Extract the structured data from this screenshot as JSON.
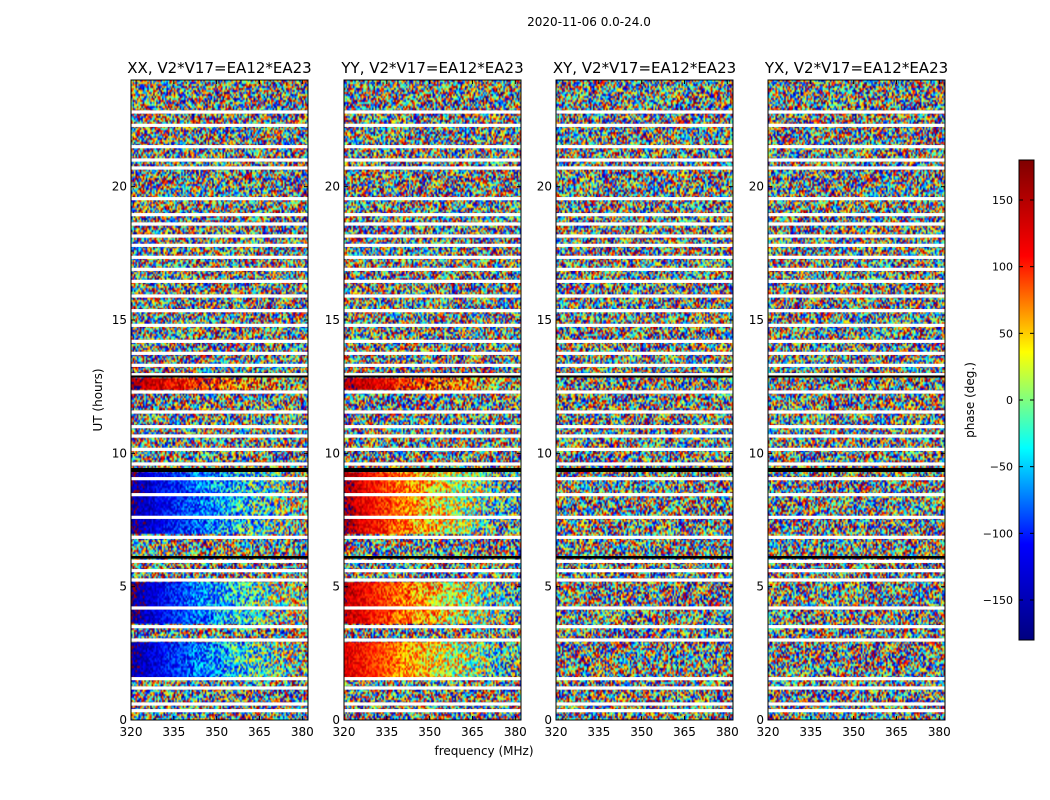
{
  "figure_title": "2020-11-06 0.0-24.0",
  "chart_data": [
    {
      "type": "heatmap",
      "title": "XX, V2*V17=EA12*EA23",
      "polarization": "XX",
      "xlim": [
        320,
        382
      ],
      "ylim": [
        0,
        24
      ],
      "xticks": [
        320,
        335,
        350,
        365,
        380
      ],
      "yticks": [
        0,
        5,
        10,
        15,
        20
      ],
      "ylabel": "UT (hours)",
      "coherent_segments": [
        {
          "t_start": 1.6,
          "t_end": 2.9,
          "phase_at_320": -170,
          "phase_at_380": 20
        },
        {
          "t_start": 3.6,
          "t_end": 5.2,
          "phase_at_320": -175,
          "phase_at_380": 30
        },
        {
          "t_start": 7.0,
          "t_end": 9.3,
          "phase_at_320": -170,
          "phase_at_380": 10
        },
        {
          "t_start": 12.4,
          "t_end": 12.8,
          "phase_at_320": 165,
          "phase_at_380": 60
        }
      ]
    },
    {
      "type": "heatmap",
      "title": "YY, V2*V17=EA12*EA23",
      "polarization": "YY",
      "xlim": [
        320,
        382
      ],
      "ylim": [
        0,
        24
      ],
      "xticks": [
        320,
        335,
        350,
        365,
        380
      ],
      "yticks": [
        0,
        5,
        10,
        15,
        20
      ],
      "xlabel": "frequency (MHz)",
      "coherent_segments": [
        {
          "t_start": 1.6,
          "t_end": 2.9,
          "phase_at_320": 150,
          "phase_at_380": -40
        },
        {
          "t_start": 3.6,
          "t_end": 5.2,
          "phase_at_320": 160,
          "phase_at_380": -30
        },
        {
          "t_start": 7.0,
          "t_end": 9.3,
          "phase_at_320": 170,
          "phase_at_380": -50
        },
        {
          "t_start": 12.4,
          "t_end": 12.8,
          "phase_at_320": 165,
          "phase_at_380": 60
        }
      ]
    },
    {
      "type": "heatmap",
      "title": "XY, V2*V17=EA12*EA23",
      "polarization": "XY",
      "xlim": [
        320,
        382
      ],
      "ylim": [
        0,
        24
      ],
      "xticks": [
        320,
        335,
        350,
        365,
        380
      ],
      "yticks": [
        0,
        5,
        10,
        15,
        20
      ],
      "coherent_segments": []
    },
    {
      "type": "heatmap",
      "title": "YX, V2*V17=EA12*EA23",
      "polarization": "YX",
      "xlim": [
        320,
        382
      ],
      "ylim": [
        0,
        24
      ],
      "xticks": [
        320,
        335,
        350,
        365,
        380
      ],
      "yticks": [
        0,
        5,
        10,
        15,
        20
      ],
      "coherent_segments": []
    }
  ],
  "flagged_gaps_hours": [
    0.35,
    0.6,
    1.2,
    1.55,
    3.0,
    3.5,
    4.2,
    5.25,
    5.6,
    5.95,
    6.85,
    7.6,
    8.45,
    9.05,
    9.6,
    10.15,
    10.65,
    11.0,
    11.55,
    12.3,
    12.95,
    13.3,
    13.75,
    14.2,
    14.8,
    15.35,
    15.9,
    16.45,
    16.9,
    17.35,
    17.8,
    18.15,
    18.6,
    18.95,
    19.55,
    20.7,
    21.0,
    21.5,
    22.3,
    22.8
  ],
  "black_bands_hours": [
    [
      9.3,
      9.45
    ],
    [
      6.05,
      6.15
    ],
    [
      12.85,
      12.92
    ]
  ],
  "colorbar": {
    "label": "phase (deg.)",
    "range": [
      -180,
      180
    ],
    "ticks": [
      150,
      100,
      50,
      0,
      -50,
      -100,
      -150
    ],
    "tick_labels": [
      "150",
      "100",
      "50",
      "0",
      "−50",
      "−100",
      "−150"
    ],
    "colormap": "jet",
    "stops": [
      "#00007f",
      "#0000ff",
      "#00ffff",
      "#ffff00",
      "#ff0000",
      "#7f0000"
    ]
  }
}
